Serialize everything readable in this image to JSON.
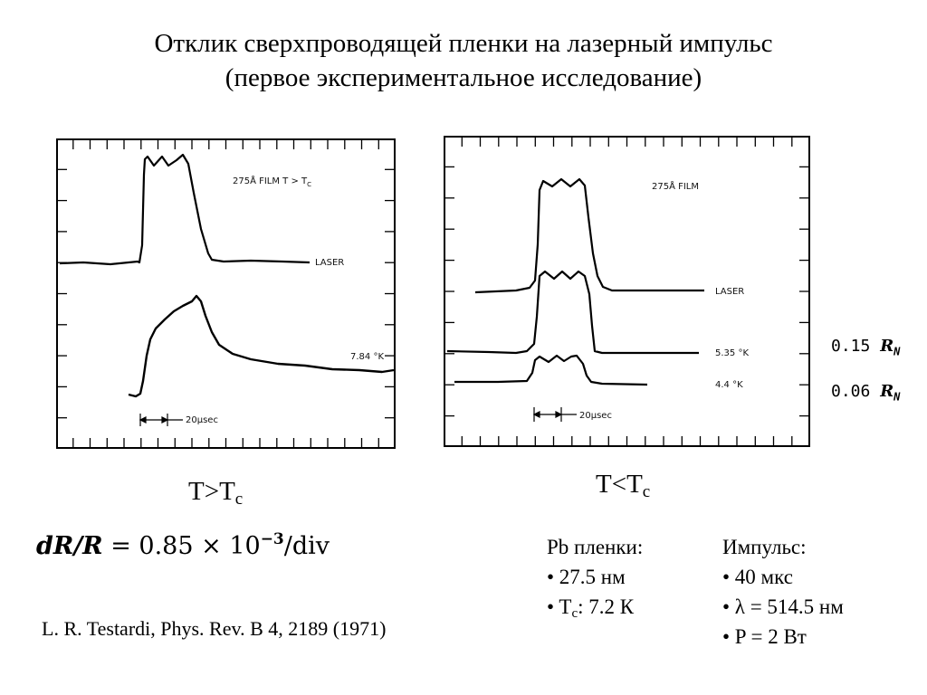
{
  "title": {
    "line1": "Отклик сверхпроводящей пленки на лазерный импульс",
    "line2": "(первое экспериментальное исследование)"
  },
  "left_panel": {
    "film_label": "275Å FILM  T > T",
    "film_label_sub": "C",
    "laser_label": "LASER",
    "temp_label": "7.84 °K",
    "scale_label": "20μsec",
    "condition_main": "T>T",
    "condition_sub": "c"
  },
  "right_panel": {
    "film_label": "275Å FILM",
    "laser_label": "LASER",
    "temp_label_1": "5.35 °K",
    "temp_label_2": "4.4 °K",
    "scale_label": "20μsec",
    "condition_main": "T<T",
    "condition_sub": "c",
    "ratio_1_value": "0.15",
    "ratio_1_symbol": "R",
    "ratio_1_sub": "N",
    "ratio_2_value": "0.06",
    "ratio_2_symbol": "R",
    "ratio_2_sub": "N"
  },
  "formula": {
    "lhs": "dR/R",
    "eq": "= 0.85 × 10",
    "exp": "−3",
    "unit": "/div"
  },
  "citation": "L. R. Testardi, Phys. Rev. B 4, 2189 (1971)",
  "pb_films": {
    "header": "Pb пленки:",
    "item1": "• 27.5 нм",
    "item2_pre": "• T",
    "item2_sub": "c",
    "item2_post": ": 7.2 К"
  },
  "pulse": {
    "header": "Импульс:",
    "item1": "• 40 мкс",
    "item2": "• λ = 514.5 нм",
    "item3": "• P = 2 Вт"
  }
}
